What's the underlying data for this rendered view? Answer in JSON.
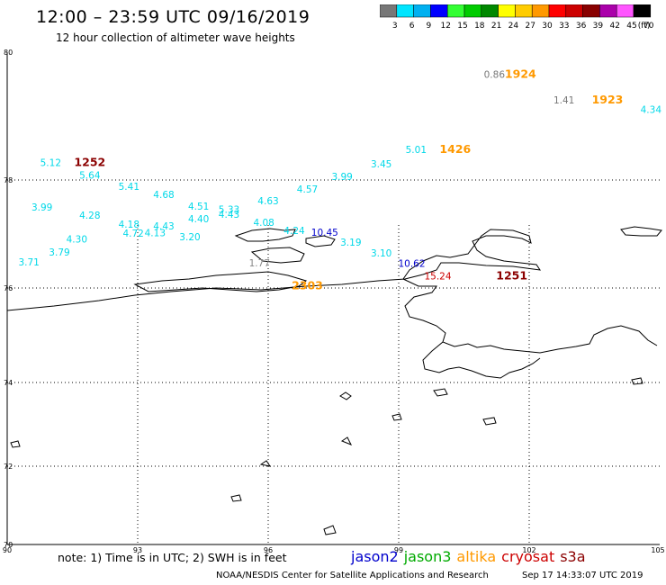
{
  "header": {
    "title": "12:00 – 23:59 UTC 09/16/2019",
    "subtitle": "12 hour collection of altimeter wave heights"
  },
  "legend": {
    "unit": "(ft)",
    "bins": [
      {
        "label": "3",
        "color": "#777777"
      },
      {
        "label": "6",
        "color": "#00e5ff"
      },
      {
        "label": "9",
        "color": "#00b0f0"
      },
      {
        "label": "12",
        "color": "#0000ff"
      },
      {
        "label": "15",
        "color": "#33ff33"
      },
      {
        "label": "18",
        "color": "#00cc00"
      },
      {
        "label": "21",
        "color": "#008800"
      },
      {
        "label": "24",
        "color": "#ffff00"
      },
      {
        "label": "27",
        "color": "#ffcc00"
      },
      {
        "label": "30",
        "color": "#ff9900"
      },
      {
        "label": "33",
        "color": "#ff0000"
      },
      {
        "label": "36",
        "color": "#cc0000"
      },
      {
        "label": "39",
        "color": "#880000"
      },
      {
        "label": "42",
        "color": "#aa00aa"
      },
      {
        "label": "45",
        "color": "#ff55ff"
      },
      {
        "label": "70",
        "color": "#000000"
      }
    ]
  },
  "axes": {
    "lat_labels": [
      "80",
      "78",
      "76",
      "74",
      "72",
      "70"
    ],
    "lon_labels": [
      "90",
      "93",
      "96",
      "99",
      "102",
      "105"
    ],
    "lat_range": [
      70,
      80
    ],
    "lon_range": [
      90,
      105
    ]
  },
  "wave_heights": [
    {
      "v": "5.12",
      "lon": 91.0,
      "lat": 78.22,
      "c": "#00d8e8"
    },
    {
      "v": "5.64",
      "lon": 91.9,
      "lat": 78.02,
      "c": "#00d8e8"
    },
    {
      "v": "5.41",
      "lon": 92.8,
      "lat": 77.82,
      "c": "#00d8e8"
    },
    {
      "v": "4.68",
      "lon": 93.6,
      "lat": 77.67,
      "c": "#00d8e8"
    },
    {
      "v": "4.51",
      "lon": 94.4,
      "lat": 77.45,
      "c": "#00d8e8"
    },
    {
      "v": "5.33",
      "lon": 95.1,
      "lat": 77.39,
      "c": "#00d8e8"
    },
    {
      "v": "4.63",
      "lon": 96.0,
      "lat": 77.55,
      "c": "#00d8e8"
    },
    {
      "v": "4.57",
      "lon": 96.9,
      "lat": 77.77,
      "c": "#00d8e8"
    },
    {
      "v": "3.99",
      "lon": 97.7,
      "lat": 78.0,
      "c": "#00d8e8"
    },
    {
      "v": "3.45",
      "lon": 98.6,
      "lat": 78.2,
      "c": "#00d8e8"
    },
    {
      "v": "5.01",
      "lon": 99.4,
      "lat": 78.42,
      "c": "#00d8e8"
    },
    {
      "v": "4.34",
      "lon": 104.8,
      "lat": 79.05,
      "c": "#00d8e8"
    },
    {
      "v": "3.99",
      "lon": 90.8,
      "lat": 77.43,
      "c": "#00d8e8"
    },
    {
      "v": "4.28",
      "lon": 91.9,
      "lat": 77.28,
      "c": "#00d8e8"
    },
    {
      "v": "4.18",
      "lon": 92.8,
      "lat": 77.12,
      "c": "#00d8e8"
    },
    {
      "v": "4.43",
      "lon": 93.6,
      "lat": 77.08,
      "c": "#00d8e8"
    },
    {
      "v": "4.40",
      "lon": 94.4,
      "lat": 77.22,
      "c": "#00d8e8"
    },
    {
      "v": "4.43",
      "lon": 95.1,
      "lat": 77.3,
      "c": "#00d8e8"
    },
    {
      "v": "4.08",
      "lon": 95.9,
      "lat": 77.15,
      "c": "#00d8e8"
    },
    {
      "v": "4.72",
      "lon": 92.9,
      "lat": 76.95,
      "c": "#00d8e8"
    },
    {
      "v": "4.13",
      "lon": 93.4,
      "lat": 76.96,
      "c": "#00d8e8"
    },
    {
      "v": "4.24",
      "lon": 96.6,
      "lat": 77.0,
      "c": "#00d8e8"
    },
    {
      "v": "4.30",
      "lon": 91.6,
      "lat": 76.84,
      "c": "#00d8e8"
    },
    {
      "v": "3.20",
      "lon": 94.2,
      "lat": 76.88,
      "c": "#00d8e8"
    },
    {
      "v": "3.19",
      "lon": 97.9,
      "lat": 76.78,
      "c": "#00d8e8"
    },
    {
      "v": "3.79",
      "lon": 91.2,
      "lat": 76.6,
      "c": "#00d8e8"
    },
    {
      "v": "3.71",
      "lon": 90.5,
      "lat": 76.42,
      "c": "#00d8e8"
    },
    {
      "v": "3.10",
      "lon": 98.6,
      "lat": 76.58,
      "c": "#00d8e8"
    },
    {
      "v": "1.77",
      "lon": 95.8,
      "lat": 76.4,
      "c": "#888888"
    },
    {
      "v": "0.86",
      "lon": 101.2,
      "lat": 79.6,
      "c": "#777777"
    },
    {
      "v": "1.41",
      "lon": 102.8,
      "lat": 79.2,
      "c": "#777777"
    },
    {
      "v": "10.45",
      "lon": 97.3,
      "lat": 76.97,
      "c": "#0000cc"
    },
    {
      "v": "10.62",
      "lon": 99.3,
      "lat": 76.39,
      "c": "#0000cc"
    },
    {
      "v": "15.24",
      "lon": 99.9,
      "lat": 76.16,
      "c": "#cc0000"
    }
  ],
  "pass_times": [
    {
      "t": "1252",
      "lon": 91.9,
      "lat": 78.22,
      "c": "#8b0000"
    },
    {
      "t": "1426",
      "lon": 100.3,
      "lat": 78.42,
      "c": "#ff9900"
    },
    {
      "t": "1924",
      "lon": 101.8,
      "lat": 79.6,
      "c": "#ff9900"
    },
    {
      "t": "1923",
      "lon": 103.8,
      "lat": 79.2,
      "c": "#ff9900"
    },
    {
      "t": "1251",
      "lon": 101.6,
      "lat": 76.16,
      "c": "#8b0000"
    },
    {
      "t": "2303",
      "lon": 96.9,
      "lat": 75.97,
      "c": "#ff9900"
    }
  ],
  "footer": {
    "note": "note:  1) Time is in UTC;  2) SWH is in feet",
    "satellites": [
      {
        "name": "jason2",
        "color": "#0000cc"
      },
      {
        "name": "jason3",
        "color": "#00aa00"
      },
      {
        "name": "altika",
        "color": "#ff9900"
      },
      {
        "name": "cryosat",
        "color": "#cc0000"
      },
      {
        "name": "s3a",
        "color": "#8b0000"
      }
    ],
    "credit": "NOAA/NESDIS Center for Satellite Applications and Research",
    "timestamp": "Sep 17 14:33:07 UTC 2019"
  }
}
